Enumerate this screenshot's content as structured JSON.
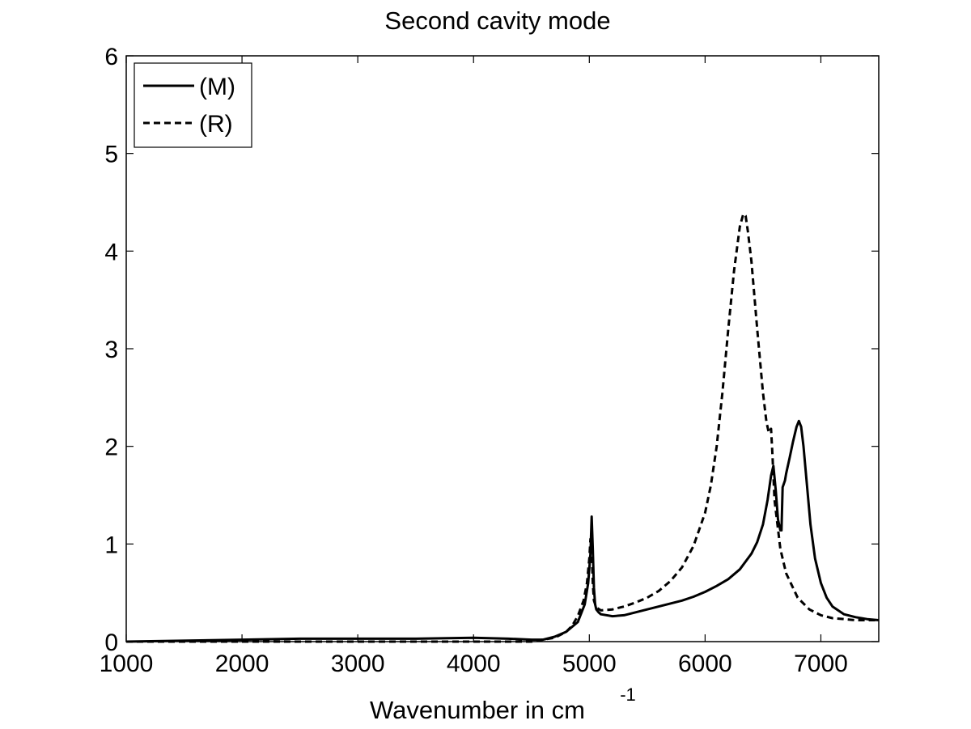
{
  "chart_data": {
    "type": "line",
    "title": "Second cavity mode",
    "xlabel": "Wavenumber in cm",
    "xlabel_superscript": "-1",
    "ylabel": "",
    "xlim": [
      1000,
      7500
    ],
    "ylim": [
      0,
      6
    ],
    "xticks": [
      1000,
      2000,
      3000,
      4000,
      5000,
      6000,
      7000
    ],
    "yticks": [
      0,
      1,
      2,
      3,
      4,
      5,
      6
    ],
    "grid": false,
    "legend_position": "top-left",
    "series": [
      {
        "name": "(M)",
        "style": "solid",
        "color": "#000000",
        "x": [
          1000,
          2000,
          2500,
          3000,
          3500,
          4000,
          4300,
          4500,
          4600,
          4700,
          4800,
          4900,
          4960,
          4990,
          5010,
          5020,
          5030,
          5040,
          5050,
          5060,
          5080,
          5100,
          5200,
          5300,
          5400,
          5500,
          5600,
          5700,
          5800,
          5900,
          6000,
          6100,
          6200,
          6300,
          6400,
          6450,
          6500,
          6540,
          6570,
          6590,
          6610,
          6630,
          6650,
          6660,
          6670,
          6690,
          6700,
          6730,
          6760,
          6790,
          6810,
          6830,
          6850,
          6880,
          6910,
          6950,
          7000,
          7050,
          7100,
          7200,
          7300,
          7400,
          7500
        ],
        "y": [
          0.0,
          0.02,
          0.03,
          0.03,
          0.03,
          0.04,
          0.03,
          0.02,
          0.02,
          0.05,
          0.1,
          0.2,
          0.38,
          0.6,
          0.9,
          1.28,
          0.95,
          0.55,
          0.38,
          0.33,
          0.3,
          0.28,
          0.26,
          0.27,
          0.3,
          0.33,
          0.36,
          0.39,
          0.42,
          0.46,
          0.51,
          0.57,
          0.64,
          0.74,
          0.9,
          1.02,
          1.2,
          1.45,
          1.7,
          1.8,
          1.55,
          1.25,
          1.14,
          1.14,
          1.58,
          1.65,
          1.72,
          1.88,
          2.05,
          2.2,
          2.26,
          2.2,
          2.0,
          1.6,
          1.2,
          0.85,
          0.6,
          0.45,
          0.36,
          0.28,
          0.25,
          0.23,
          0.22
        ]
      },
      {
        "name": "(R)",
        "style": "dashed",
        "color": "#000000",
        "x": [
          1000,
          3000,
          4500,
          4700,
          4800,
          4850,
          4900,
          4950,
          4980,
          5000,
          5010,
          5020,
          5030,
          5040,
          5060,
          5100,
          5200,
          5300,
          5400,
          5500,
          5600,
          5700,
          5800,
          5900,
          6000,
          6050,
          6100,
          6150,
          6200,
          6250,
          6300,
          6330,
          6350,
          6370,
          6400,
          6450,
          6500,
          6530,
          6550,
          6570,
          6580,
          6600,
          6650,
          6700,
          6800,
          6900,
          7000,
          7100,
          7200,
          7300,
          7400,
          7500
        ],
        "y": [
          0.0,
          0.0,
          0.0,
          0.04,
          0.1,
          0.16,
          0.26,
          0.42,
          0.6,
          0.85,
          1.05,
          0.95,
          0.6,
          0.42,
          0.35,
          0.32,
          0.33,
          0.36,
          0.4,
          0.45,
          0.52,
          0.62,
          0.76,
          0.98,
          1.32,
          1.6,
          2.0,
          2.55,
          3.2,
          3.8,
          4.25,
          4.38,
          4.36,
          4.2,
          3.9,
          3.2,
          2.55,
          2.25,
          2.14,
          2.18,
          1.95,
          1.45,
          0.95,
          0.7,
          0.45,
          0.33,
          0.27,
          0.24,
          0.23,
          0.22,
          0.22,
          0.22
        ]
      }
    ]
  }
}
